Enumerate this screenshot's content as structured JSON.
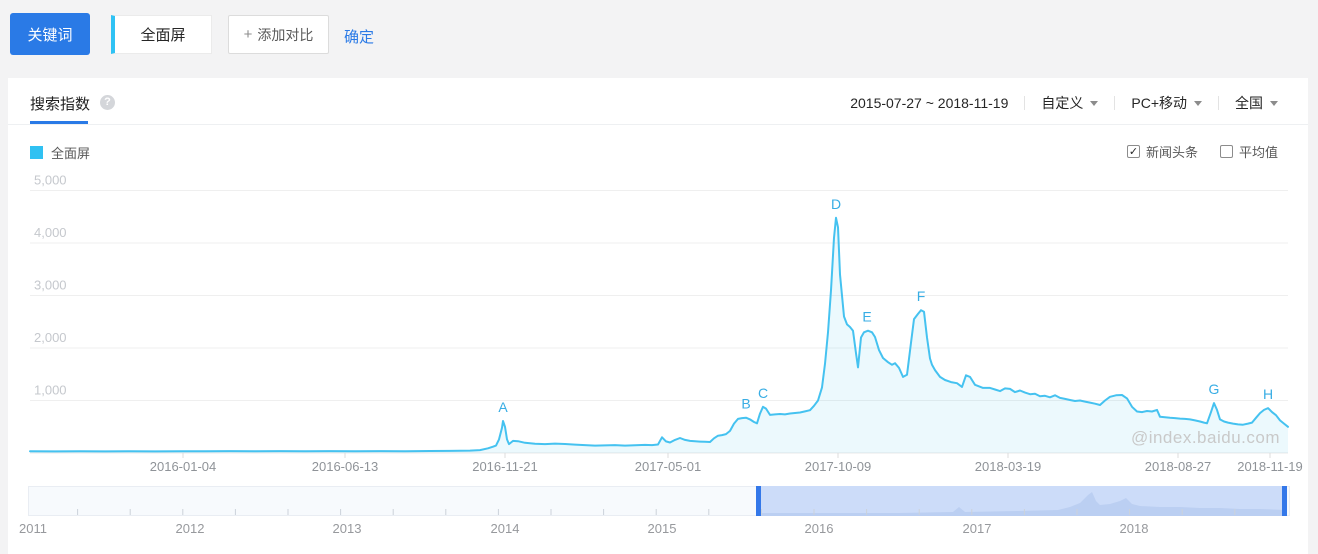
{
  "toolbar": {
    "keyword_button": "关键词",
    "keyword_tab": "全面屏",
    "plus": "+",
    "add_compare": "添加对比",
    "confirm": "确定"
  },
  "panel": {
    "tab_title": "搜索指数",
    "help_glyph": "?",
    "date_range": "2015-07-27 ~ 2018-11-19",
    "dropdowns": [
      {
        "label": "自定义"
      },
      {
        "label": "PC+移动"
      },
      {
        "label": "全国"
      }
    ],
    "legend": {
      "label": "全面屏",
      "color": "#30c1f2"
    },
    "checkboxes": [
      {
        "label": "新闻头条",
        "checked": true
      },
      {
        "label": "平均值",
        "checked": false
      }
    ],
    "watermark": "@index.baidu.com"
  },
  "chart_data": {
    "type": "area",
    "title": "搜索指数 - 全面屏",
    "series_name": "全面屏",
    "x_range": [
      "2015-07-27",
      "2018-11-19"
    ],
    "ylim": [
      0,
      5300
    ],
    "grid": true,
    "line_color": "#45c2f0",
    "fill_color": "rgba(69,194,240,0.10)",
    "annotation_color": "#38ade4",
    "yticks": [
      {
        "v": 5000,
        "label": "5,000"
      },
      {
        "v": 4000,
        "label": "4,000"
      },
      {
        "v": 3000,
        "label": "3,000"
      },
      {
        "v": 2000,
        "label": "2,000"
      },
      {
        "v": 1000,
        "label": "1,000"
      }
    ],
    "xticks": [
      {
        "x": 153,
        "label": "2016-01-04"
      },
      {
        "x": 315,
        "label": "2016-06-13"
      },
      {
        "x": 475,
        "label": "2016-11-21"
      },
      {
        "x": 638,
        "label": "2017-05-01"
      },
      {
        "x": 808,
        "label": "2017-10-09"
      },
      {
        "x": 978,
        "label": "2018-03-19"
      },
      {
        "x": 1148,
        "label": "2018-08-27"
      },
      {
        "x": 1240,
        "label": "2018-11-19"
      }
    ],
    "annotations": [
      {
        "letter": "A",
        "x": 473,
        "v": 610
      },
      {
        "letter": "B",
        "x": 716,
        "v": 672
      },
      {
        "letter": "C",
        "x": 733,
        "v": 880
      },
      {
        "letter": "D",
        "x": 806,
        "v": 4480
      },
      {
        "letter": "E",
        "x": 837,
        "v": 2330
      },
      {
        "letter": "F",
        "x": 891,
        "v": 2720
      },
      {
        "letter": "G",
        "x": 1184,
        "v": 950
      },
      {
        "letter": "H",
        "x": 1238,
        "v": 855
      }
    ],
    "points": [
      [
        0,
        35
      ],
      [
        25,
        30
      ],
      [
        50,
        34
      ],
      [
        75,
        30
      ],
      [
        100,
        35
      ],
      [
        125,
        31
      ],
      [
        150,
        35
      ],
      [
        175,
        32
      ],
      [
        200,
        36
      ],
      [
        225,
        32
      ],
      [
        250,
        36
      ],
      [
        275,
        33
      ],
      [
        300,
        37
      ],
      [
        325,
        33
      ],
      [
        350,
        37
      ],
      [
        375,
        34
      ],
      [
        400,
        38
      ],
      [
        420,
        40
      ],
      [
        440,
        45
      ],
      [
        450,
        55
      ],
      [
        458,
        90
      ],
      [
        463,
        120
      ],
      [
        466,
        140
      ],
      [
        469,
        260
      ],
      [
        472,
        480
      ],
      [
        473,
        610
      ],
      [
        475,
        500
      ],
      [
        477,
        260
      ],
      [
        479,
        170
      ],
      [
        483,
        230
      ],
      [
        488,
        225
      ],
      [
        495,
        195
      ],
      [
        505,
        175
      ],
      [
        515,
        170
      ],
      [
        525,
        180
      ],
      [
        535,
        172
      ],
      [
        545,
        160
      ],
      [
        555,
        150
      ],
      [
        565,
        140
      ],
      [
        575,
        145
      ],
      [
        585,
        150
      ],
      [
        595,
        140
      ],
      [
        605,
        146
      ],
      [
        615,
        155
      ],
      [
        622,
        150
      ],
      [
        628,
        162
      ],
      [
        632,
        300
      ],
      [
        636,
        220
      ],
      [
        640,
        200
      ],
      [
        645,
        250
      ],
      [
        650,
        285
      ],
      [
        655,
        250
      ],
      [
        660,
        230
      ],
      [
        665,
        222
      ],
      [
        670,
        218
      ],
      [
        675,
        214
      ],
      [
        680,
        210
      ],
      [
        684,
        280
      ],
      [
        688,
        330
      ],
      [
        692,
        340
      ],
      [
        696,
        360
      ],
      [
        700,
        420
      ],
      [
        704,
        560
      ],
      [
        708,
        650
      ],
      [
        712,
        665
      ],
      [
        716,
        672
      ],
      [
        720,
        640
      ],
      [
        724,
        590
      ],
      [
        727,
        565
      ],
      [
        730,
        750
      ],
      [
        733,
        880
      ],
      [
        736,
        845
      ],
      [
        740,
        725
      ],
      [
        745,
        735
      ],
      [
        750,
        742
      ],
      [
        755,
        735
      ],
      [
        760,
        752
      ],
      [
        765,
        762
      ],
      [
        770,
        772
      ],
      [
        775,
        792
      ],
      [
        780,
        815
      ],
      [
        784,
        900
      ],
      [
        788,
        1000
      ],
      [
        792,
        1250
      ],
      [
        795,
        1700
      ],
      [
        798,
        2300
      ],
      [
        801,
        3100
      ],
      [
        804,
        4100
      ],
      [
        806,
        4480
      ],
      [
        808,
        4300
      ],
      [
        810,
        3400
      ],
      [
        812,
        3000
      ],
      [
        814,
        2600
      ],
      [
        817,
        2450
      ],
      [
        820,
        2400
      ],
      [
        823,
        2330
      ],
      [
        826,
        1900
      ],
      [
        828,
        1630
      ],
      [
        831,
        2200
      ],
      [
        834,
        2300
      ],
      [
        838,
        2330
      ],
      [
        842,
        2300
      ],
      [
        845,
        2210
      ],
      [
        849,
        1960
      ],
      [
        853,
        1810
      ],
      [
        858,
        1730
      ],
      [
        862,
        1680
      ],
      [
        865,
        1710
      ],
      [
        869,
        1620
      ],
      [
        873,
        1450
      ],
      [
        877,
        1490
      ],
      [
        881,
        2100
      ],
      [
        884,
        2550
      ],
      [
        888,
        2650
      ],
      [
        891,
        2720
      ],
      [
        894,
        2690
      ],
      [
        897,
        2200
      ],
      [
        900,
        1800
      ],
      [
        902,
        1680
      ],
      [
        905,
        1580
      ],
      [
        910,
        1450
      ],
      [
        915,
        1390
      ],
      [
        921,
        1350
      ],
      [
        927,
        1330
      ],
      [
        932,
        1260
      ],
      [
        936,
        1480
      ],
      [
        940,
        1450
      ],
      [
        945,
        1300
      ],
      [
        953,
        1240
      ],
      [
        960,
        1240
      ],
      [
        965,
        1210
      ],
      [
        970,
        1180
      ],
      [
        975,
        1230
      ],
      [
        980,
        1220
      ],
      [
        985,
        1160
      ],
      [
        990,
        1190
      ],
      [
        995,
        1150
      ],
      [
        1000,
        1120
      ],
      [
        1005,
        1130
      ],
      [
        1010,
        1080
      ],
      [
        1015,
        1090
      ],
      [
        1020,
        1060
      ],
      [
        1025,
        1100
      ],
      [
        1030,
        1050
      ],
      [
        1035,
        1030
      ],
      [
        1040,
        1010
      ],
      [
        1045,
        990
      ],
      [
        1050,
        1000
      ],
      [
        1055,
        980
      ],
      [
        1060,
        960
      ],
      [
        1065,
        940
      ],
      [
        1070,
        915
      ],
      [
        1075,
        1000
      ],
      [
        1080,
        1070
      ],
      [
        1086,
        1100
      ],
      [
        1092,
        1105
      ],
      [
        1097,
        1040
      ],
      [
        1102,
        880
      ],
      [
        1107,
        790
      ],
      [
        1112,
        780
      ],
      [
        1117,
        800
      ],
      [
        1122,
        790
      ],
      [
        1127,
        820
      ],
      [
        1130,
        690
      ],
      [
        1135,
        680
      ],
      [
        1140,
        670
      ],
      [
        1145,
        665
      ],
      [
        1150,
        655
      ],
      [
        1155,
        650
      ],
      [
        1160,
        640
      ],
      [
        1165,
        620
      ],
      [
        1170,
        600
      ],
      [
        1174,
        580
      ],
      [
        1177,
        565
      ],
      [
        1181,
        780
      ],
      [
        1184,
        950
      ],
      [
        1187,
        820
      ],
      [
        1190,
        640
      ],
      [
        1194,
        600
      ],
      [
        1198,
        580
      ],
      [
        1203,
        560
      ],
      [
        1208,
        545
      ],
      [
        1213,
        540
      ],
      [
        1218,
        560
      ],
      [
        1222,
        580
      ],
      [
        1226,
        670
      ],
      [
        1230,
        760
      ],
      [
        1234,
        820
      ],
      [
        1238,
        855
      ],
      [
        1242,
        780
      ],
      [
        1246,
        720
      ],
      [
        1250,
        620
      ],
      [
        1254,
        560
      ],
      [
        1258,
        500
      ]
    ]
  },
  "minimap": {
    "years": [
      {
        "x": 5,
        "label": "2011"
      },
      {
        "x": 162,
        "label": "2012"
      },
      {
        "x": 319,
        "label": "2013"
      },
      {
        "x": 477,
        "label": "2014"
      },
      {
        "x": 634,
        "label": "2015"
      },
      {
        "x": 791,
        "label": "2016"
      },
      {
        "x": 949,
        "label": "2017"
      },
      {
        "x": 1106,
        "label": "2018"
      }
    ],
    "selection": {
      "start": 729,
      "end": 1258
    },
    "range_fill": "#ccdcf9",
    "handle_color": "#3478e9",
    "silhouette": [
      [
        729,
        27
      ],
      [
        820,
        27
      ],
      [
        870,
        27
      ],
      [
        925,
        26
      ],
      [
        931,
        21
      ],
      [
        937,
        26
      ],
      [
        990,
        25
      ],
      [
        1030,
        24
      ],
      [
        1042,
        21
      ],
      [
        1052,
        17
      ],
      [
        1060,
        9
      ],
      [
        1064,
        6
      ],
      [
        1068,
        15
      ],
      [
        1072,
        19
      ],
      [
        1082,
        18
      ],
      [
        1092,
        15
      ],
      [
        1098,
        12
      ],
      [
        1104,
        18
      ],
      [
        1112,
        20
      ],
      [
        1132,
        21
      ],
      [
        1152,
        21
      ],
      [
        1172,
        22
      ],
      [
        1192,
        22
      ],
      [
        1212,
        23
      ],
      [
        1232,
        23
      ],
      [
        1258,
        24
      ]
    ]
  }
}
